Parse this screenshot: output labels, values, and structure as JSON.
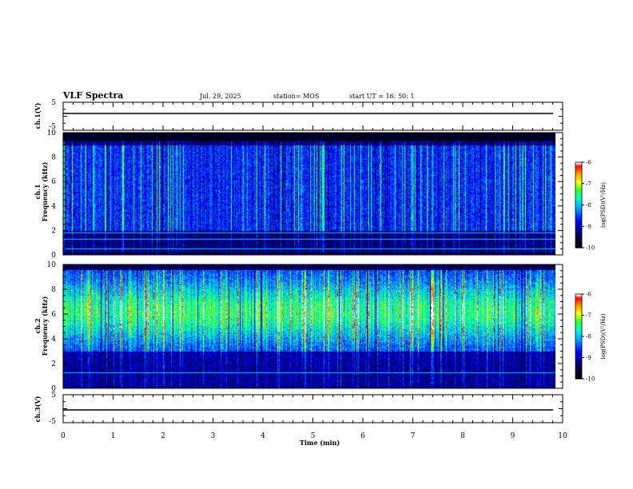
{
  "header": {
    "title": "VLF Spectra",
    "date": "Jul. 29, 2025",
    "station": "station= MOS",
    "start": "start UT =  16: 50: 1"
  },
  "colors": {
    "spectrogram_scale": [
      "#000000",
      "#000066",
      "#0000ff",
      "#00b0ff",
      "#00ffcc",
      "#33ff33",
      "#ffff00",
      "#ff8800",
      "#ff0000",
      "#ffffff"
    ],
    "trace": "#000000"
  },
  "chart_data": [
    {
      "type": "line",
      "id": "ch1-waveform",
      "ylabel": "ch.1(V)",
      "ylim": [
        -5,
        5
      ],
      "yticks": [
        5,
        -5
      ],
      "xlim": [
        0,
        10
      ],
      "series": [
        {
          "values_approx": 0
        }
      ]
    },
    {
      "type": "heatmap",
      "id": "ch1-spectrogram",
      "ylabel": "ch.1\nFrequency (kHz)",
      "ylim": [
        0,
        10
      ],
      "yticks": [
        0,
        2,
        4,
        6,
        8,
        10
      ],
      "xlim": [
        0,
        10
      ],
      "data_end_min": 9.85,
      "colorbar": {
        "label": "log(PSD)(V²/Hz)",
        "range": [
          -10,
          -6
        ],
        "ticks": [
          -6,
          -7,
          -8,
          -9,
          -10
        ]
      },
      "band_khz": [
        2,
        9
      ],
      "peak_log_psd": -8,
      "horizontal_lines_khz": [
        0.5,
        1.3,
        1.8
      ]
    },
    {
      "type": "heatmap",
      "id": "ch2-spectrogram",
      "ylabel": "ch.2\nFrequency (kHz)",
      "ylim": [
        0,
        10
      ],
      "yticks": [
        0,
        2,
        4,
        6,
        8,
        10
      ],
      "xlim": [
        0,
        10
      ],
      "data_end_min": 9.85,
      "colorbar": {
        "label": "log(PSD)(V²/Hz)",
        "range": [
          -10,
          -6
        ],
        "ticks": [
          -6,
          -7,
          -8,
          -9,
          -10
        ]
      },
      "band_khz": [
        3,
        9.5
      ],
      "peak_khz": 6.2,
      "peak_log_psd": -7,
      "horizontal_lines_khz": [
        1.3
      ]
    },
    {
      "type": "line",
      "id": "ch3-waveform",
      "ylabel": "ch.3(V)",
      "ylim": [
        -5,
        5
      ],
      "yticks": [
        5,
        -5
      ],
      "xlim": [
        0,
        10
      ],
      "series": [
        {
          "values_approx": 0
        }
      ]
    }
  ],
  "xaxis": {
    "label": "Time (min)",
    "ticks": [
      "0",
      "1",
      "2",
      "3",
      "4",
      "5",
      "6",
      "7",
      "8",
      "9",
      "10"
    ]
  },
  "colorbar_ticks": [
    "-6",
    "-7",
    "-8",
    "-9",
    "-10"
  ],
  "colorbar_label": "log(PSD)(V²/Hz)"
}
